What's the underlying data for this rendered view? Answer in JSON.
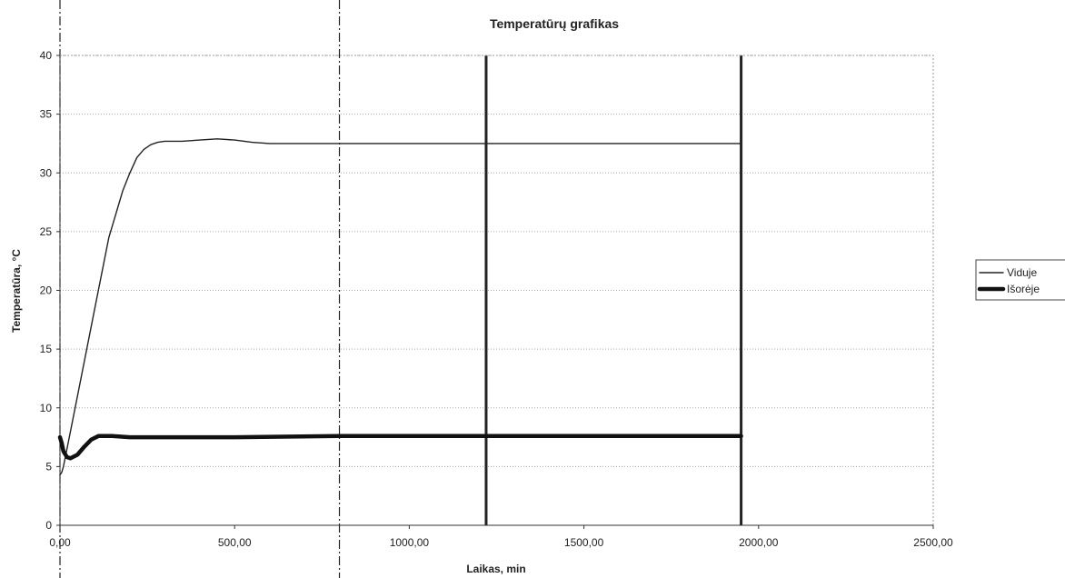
{
  "chart_data": {
    "type": "line",
    "title": "Temperatūrų grafikas",
    "xlabel": "Laikas, min",
    "ylabel": "Temperatūra, °C",
    "xlim": [
      0,
      2500
    ],
    "ylim": [
      0,
      40
    ],
    "xticks": [
      0,
      500,
      1000,
      1500,
      2000,
      2500
    ],
    "xtick_labels": [
      "0,00",
      "500,00",
      "1000,00",
      "1500,00",
      "2000,00",
      "2500,00"
    ],
    "yticks": [
      0,
      5,
      10,
      15,
      20,
      25,
      30,
      35,
      40
    ],
    "ytick_labels": [
      "0",
      "5",
      "10",
      "15",
      "20",
      "25",
      "30",
      "35",
      "40"
    ],
    "grid": "horizontal-dotted",
    "legend_position": "right",
    "vertical_markers": [
      {
        "x": 0,
        "style": "dashdot"
      },
      {
        "x": 800,
        "style": "dashdot"
      },
      {
        "x": 1220,
        "style": "solid"
      },
      {
        "x": 1950,
        "style": "solid"
      }
    ],
    "series": [
      {
        "name": "Viduje",
        "color": "#222222",
        "weight": "thin",
        "x": [
          0,
          5,
          10,
          20,
          40,
          70,
          100,
          140,
          180,
          200,
          220,
          240,
          260,
          280,
          300,
          350,
          400,
          450,
          500,
          550,
          600,
          800,
          1000,
          1200,
          1400,
          1600,
          1800,
          1950
        ],
        "y": [
          4.3,
          4.5,
          5.0,
          6.5,
          9.5,
          14.0,
          18.5,
          24.5,
          28.5,
          30.0,
          31.3,
          32.0,
          32.4,
          32.6,
          32.7,
          32.7,
          32.8,
          32.9,
          32.8,
          32.6,
          32.5,
          32.5,
          32.5,
          32.5,
          32.5,
          32.5,
          32.5,
          32.5
        ]
      },
      {
        "name": "Išorėje",
        "color": "#111111",
        "weight": "thick",
        "x": [
          0,
          5,
          10,
          20,
          30,
          50,
          70,
          90,
          110,
          150,
          200,
          300,
          500,
          800,
          1000,
          1220,
          1500,
          1800,
          1950
        ],
        "y": [
          7.5,
          7.0,
          6.3,
          5.8,
          5.7,
          6.0,
          6.7,
          7.3,
          7.6,
          7.6,
          7.5,
          7.5,
          7.5,
          7.6,
          7.6,
          7.6,
          7.6,
          7.6,
          7.6
        ]
      }
    ]
  }
}
